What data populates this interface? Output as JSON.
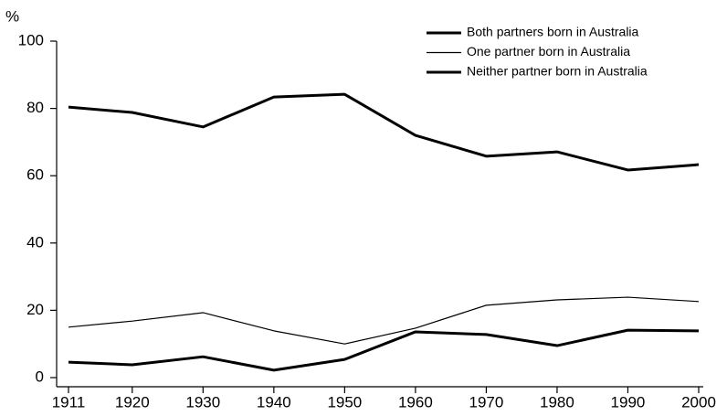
{
  "chart_data": {
    "type": "line",
    "y_axis_label": "%",
    "x": [
      1911,
      1920,
      1930,
      1940,
      1950,
      1960,
      1970,
      1980,
      1990,
      2000
    ],
    "xlim": [
      1911,
      2000
    ],
    "xticks": [
      1911,
      1920,
      1930,
      1940,
      1950,
      1960,
      1970,
      1980,
      1990,
      2000
    ],
    "ylim": [
      0,
      100
    ],
    "yticks": [
      0,
      20,
      40,
      60,
      80,
      100
    ],
    "grid": false,
    "legend": "upper right",
    "series": [
      {
        "name": "Both partners born in Australia",
        "color": "#000000",
        "linewidth": 3,
        "values": [
          80.4,
          78.8,
          74.5,
          83.4,
          84.2,
          72,
          65.8,
          67.1,
          61.7,
          63.3
        ]
      },
      {
        "name": "One partner born in Australia",
        "color": "#000000",
        "linewidth": 1.2,
        "values": [
          15,
          16.8,
          19.3,
          13.9,
          10,
          14.7,
          21.5,
          23.1,
          23.9,
          22.6
        ]
      },
      {
        "name": "Neither partner born in Australia",
        "color": "#000000",
        "linewidth": 3,
        "values": [
          4.6,
          3.8,
          6.2,
          2.2,
          5.4,
          13.6,
          12.8,
          9.5,
          14.1,
          13.9
        ]
      }
    ]
  }
}
